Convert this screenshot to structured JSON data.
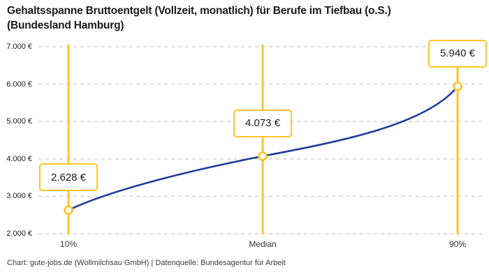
{
  "header": {
    "title_line1": "Gehaltsspanne Bruttoentgelt (Vollzeit, monatlich) für Berufe im Tiefbau (o.S.)",
    "title_line2": "(Bundesland Hamburg)"
  },
  "footer": {
    "credit": "Chart: gute-jobs.de (Wollmilchsau GmbH) | Datenquelle: Bundesagentur für Arbeit"
  },
  "colors": {
    "accent_yellow": "#ffc425",
    "curve_blue": "#1f3d99",
    "grid_gray": "#cbcbcb",
    "title_text": "#1a1a1a",
    "axis_text": "#333333",
    "footer_text": "#3c3c3c",
    "background": "#ffffff",
    "callout_fill": "#ffffff",
    "marker_fill": "#ffffff"
  },
  "chart_data": {
    "type": "line",
    "title": "Gehaltsspanne Bruttoentgelt (Vollzeit, monatlich) für Berufe im Tiefbau (o.S.) (Bundesland Hamburg)",
    "categories": [
      "10%",
      "Median",
      "90%"
    ],
    "values": [
      2628,
      4073,
      5940
    ],
    "value_labels": [
      "2.628 €",
      "4.073 €",
      "5.940 €"
    ],
    "series": [
      {
        "name": "Bruttoentgelt",
        "values": [
          2628,
          4073,
          5940
        ]
      }
    ],
    "ylim": [
      2000,
      7000
    ],
    "y_ticks": [
      {
        "value": 7000,
        "label": "7.000 €"
      },
      {
        "value": 6000,
        "label": "6.000 €"
      },
      {
        "value": 5000,
        "label": "5.000 €"
      },
      {
        "value": 4000,
        "label": "4.000 €"
      },
      {
        "value": 3000,
        "label": "3.000 €"
      },
      {
        "value": 2000,
        "label": "2.000 €"
      }
    ],
    "grid": "horizontal-dashed",
    "legend": false,
    "annotations": "vertical percentile guide lines in yellow with value callout boxes above each data point"
  }
}
